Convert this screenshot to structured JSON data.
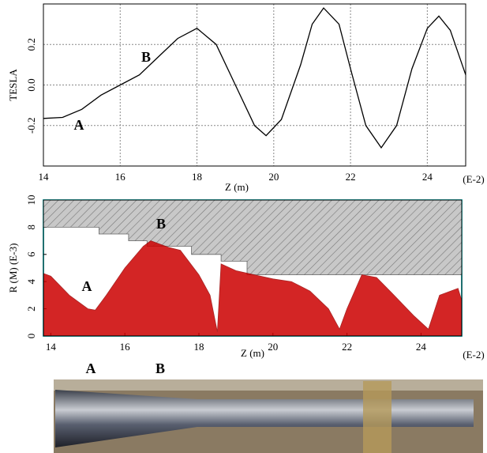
{
  "chart_data": [
    {
      "type": "line",
      "y_label": "TESLA",
      "x_label": "Z (m)",
      "x_unit": "(E-2)",
      "annotations": [
        "A",
        "B"
      ],
      "x": [
        14,
        14.5,
        15,
        15.5,
        16,
        16.5,
        17,
        17.5,
        18,
        18.5,
        19,
        19.5,
        19.8,
        20.2,
        20.7,
        21,
        21.3,
        21.7,
        22,
        22.4,
        22.8,
        23.2,
        23.6,
        24,
        24.3,
        24.6,
        25
      ],
      "values": [
        -0.165,
        -0.16,
        -0.12,
        -0.05,
        0.0,
        0.05,
        0.14,
        0.23,
        0.28,
        0.2,
        0.0,
        -0.2,
        -0.25,
        -0.17,
        0.1,
        0.3,
        0.38,
        0.3,
        0.08,
        -0.2,
        -0.31,
        -0.2,
        0.08,
        0.28,
        0.34,
        0.27,
        0.05
      ],
      "color": "#000000",
      "xlim": [
        14,
        25
      ],
      "xticks": [
        14,
        16,
        18,
        20,
        22,
        24
      ],
      "ylim": [
        -0.4,
        0.4
      ],
      "yticks": [
        -0.2,
        {
          "value": 0,
          "label": "0.0"
        },
        0.2
      ],
      "grid": true
    },
    {
      "type": "area",
      "y_label": "R (M) (E-3)",
      "x_label": "Z (m)",
      "x_unit": "(E-2)",
      "annotations": [
        "A",
        "B"
      ],
      "x": [
        13.8,
        14,
        14.5,
        15,
        15.2,
        15.5,
        16,
        16.5,
        16.7,
        17.2,
        17.5,
        18,
        18.3,
        18.5,
        18.6,
        19,
        19.5,
        20,
        20.5,
        21,
        21.5,
        21.8,
        22,
        22.4,
        22.8,
        23.2,
        23.8,
        24.2,
        24.5,
        25,
        25.1
      ],
      "values": [
        4.6,
        4.4,
        3,
        2,
        1.9,
        3,
        5,
        6.6,
        7,
        6.5,
        6.3,
        4.5,
        3,
        0.3,
        5.3,
        4.8,
        4.5,
        4.2,
        4,
        3.3,
        2,
        0.5,
        2,
        4.5,
        4.3,
        3.2,
        1.5,
        0.5,
        3,
        3.5,
        2.6
      ],
      "color": "#cc0000",
      "aperture": {
        "x": [
          13.8,
          15.3,
          15.3,
          16.1,
          16.1,
          16.6,
          16.6,
          17.8,
          17.8,
          18.6,
          18.6,
          19.3,
          19.3,
          25.1
        ],
        "values": [
          8,
          8,
          7.5,
          7.5,
          7,
          7,
          6.6,
          6.6,
          6,
          6,
          5.5,
          5.5,
          4.5,
          4.5
        ],
        "color": "#c8c8c8"
      },
      "xlim": [
        13.8,
        25.1
      ],
      "xticks": [
        14,
        16,
        18,
        20,
        22,
        24
      ],
      "ylim": [
        0,
        10
      ],
      "yticks": [
        0,
        2,
        4,
        6,
        8,
        10
      ],
      "grid": false
    }
  ],
  "photo": {
    "labels": [
      "A",
      "B"
    ]
  }
}
